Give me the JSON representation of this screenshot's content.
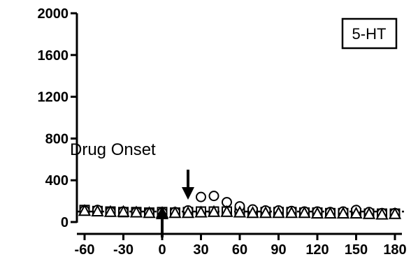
{
  "chart_data": {
    "type": "scatter",
    "title": "",
    "xlabel": "",
    "ylabel": "",
    "xlim": [
      -70,
      185
    ],
    "ylim": [
      0,
      2000
    ],
    "x_ticks": [
      -60,
      -30,
      0,
      30,
      60,
      90,
      120,
      150,
      180
    ],
    "y_ticks": [
      0,
      400,
      800,
      1200,
      1600,
      2000
    ],
    "baseline": 100,
    "legend": {
      "label": "5-HT",
      "placement": "top-right"
    },
    "annotations": {
      "drug_onset_label": "Drug Onset",
      "drug_onset_arrow_up_x": 0,
      "drug_onset_arrow_down_x": 20
    },
    "series": [
      {
        "marker": "square",
        "x": [
          -60,
          -50,
          -40,
          -30,
          -20,
          -10,
          0,
          10,
          20,
          30,
          40,
          50,
          60,
          70,
          80,
          90,
          100,
          110,
          120,
          130,
          140,
          150,
          160,
          170,
          180
        ],
        "y": [
          115,
          105,
          100,
          95,
          95,
          90,
          95,
          90,
          95,
          100,
          100,
          100,
          95,
          90,
          95,
          95,
          95,
          90,
          90,
          85,
          85,
          85,
          80,
          80,
          80
        ]
      },
      {
        "marker": "circle",
        "x": [
          -60,
          -50,
          -40,
          -30,
          -20,
          -10,
          0,
          10,
          20,
          30,
          40,
          50,
          60,
          70,
          80,
          90,
          100,
          110,
          120,
          130,
          140,
          150,
          160,
          170,
          180
        ],
        "y": [
          110,
          115,
          100,
          100,
          95,
          90,
          90,
          95,
          110,
          240,
          250,
          190,
          150,
          120,
          110,
          110,
          105,
          100,
          100,
          95,
          100,
          115,
          95,
          85,
          85
        ]
      },
      {
        "marker": "triangle",
        "x": [
          -60,
          -50,
          -40,
          -30,
          -20,
          -10,
          0,
          10,
          20,
          30,
          40,
          50,
          60,
          70,
          80,
          90,
          100,
          110,
          120,
          130,
          140,
          150,
          160,
          170,
          180
        ],
        "y": [
          105,
          100,
          95,
          95,
          90,
          85,
          85,
          85,
          85,
          90,
          95,
          95,
          90,
          85,
          85,
          85,
          85,
          85,
          80,
          80,
          80,
          80,
          75,
          70,
          75
        ]
      }
    ],
    "colors": {
      "marker_stroke": "#000000",
      "marker_fill": "#ffffff"
    }
  }
}
